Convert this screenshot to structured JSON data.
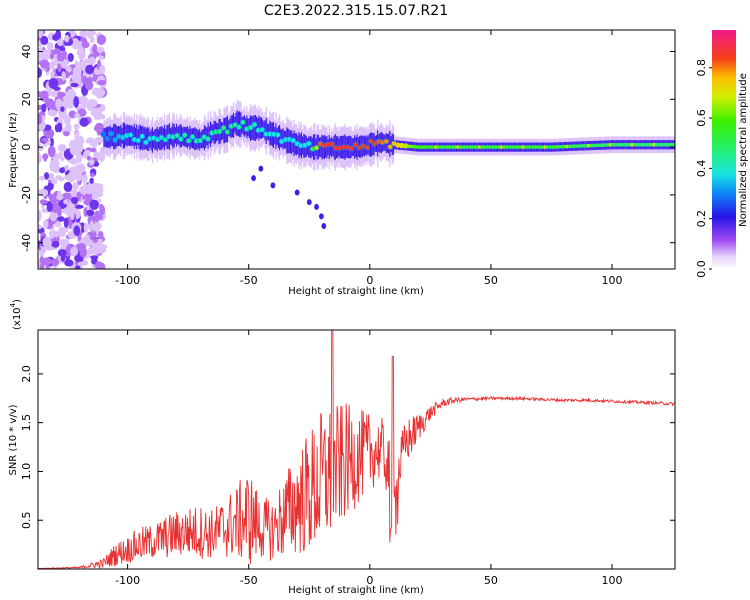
{
  "figure": {
    "title": "C2E3.2022.315.15.07.R21"
  },
  "chart_data": [
    {
      "type": "heatmap",
      "title": "",
      "xlabel": "Height of straight line (km)",
      "ylabel": "Frequency (Hz)",
      "xlim": [
        -137,
        126
      ],
      "ylim": [
        -51,
        49
      ],
      "x_ticks": [
        -100,
        -50,
        0,
        50,
        100
      ],
      "y_ticks": [
        -40,
        -20,
        0,
        20,
        40
      ],
      "colorbar": {
        "label": "Normalized spectral amplitude",
        "range": [
          0,
          0.95
        ],
        "ticks": [
          0.0,
          0.2,
          0.4,
          0.6,
          0.8
        ],
        "colormap": "rainbow (white → purple → blue → cyan → green → yellow → orange → red → magenta)"
      },
      "ridge": {
        "x": [
          -110,
          -100,
          -90,
          -80,
          -70,
          -65,
          -60,
          -55,
          -50,
          -45,
          -40,
          -35,
          -30,
          -25,
          -20,
          -15,
          -10,
          -5,
          0,
          5,
          10,
          20,
          30,
          50,
          75,
          100,
          126
        ],
        "y": [
          4,
          5,
          3,
          5,
          3,
          6,
          7,
          10,
          8,
          8,
          5,
          3,
          1,
          0,
          0,
          0,
          0,
          0,
          1,
          2,
          1,
          0,
          0,
          0,
          0,
          1,
          1
        ],
        "amplitude": [
          0.3,
          0.4,
          0.4,
          0.45,
          0.45,
          0.45,
          0.5,
          0.45,
          0.45,
          0.4,
          0.4,
          0.4,
          0.4,
          0.4,
          0.9,
          0.9,
          0.92,
          0.9,
          0.9,
          0.85,
          0.8,
          0.6,
          0.55,
          0.55,
          0.55,
          0.5,
          0.5
        ]
      },
      "noise_region": {
        "x_range": [
          -137,
          -110
        ],
        "y_range": [
          -51,
          49
        ],
        "amplitude": 0.2
      }
    },
    {
      "type": "line",
      "title": "",
      "xlabel": "Height of straight line (km)",
      "ylabel": "SNR (10 * v/v)",
      "y_multiplier_label": "(x10",
      "y_multiplier_exponent": "4",
      "y_multiplier_close": ")",
      "color": "#e83030",
      "xlim": [
        -137,
        126
      ],
      "ylim": [
        0,
        24500
      ],
      "x_ticks": [
        -100,
        -50,
        0,
        50,
        100
      ],
      "y_ticks": [
        5000,
        10000,
        15000,
        20000
      ],
      "y_tick_labels": [
        "0.5",
        "1.0",
        "1.5",
        "2.0"
      ],
      "series": [
        {
          "x": [
            -137,
            -120,
            -110,
            -105,
            -100,
            -95,
            -90,
            -85,
            -80,
            -75,
            -70,
            -65,
            -60,
            -55,
            -50,
            -45,
            -40,
            -35,
            -30,
            -25,
            -20,
            -15,
            -10,
            -5,
            0,
            5,
            10,
            15,
            20,
            25,
            30,
            35,
            40,
            50,
            60,
            70,
            80,
            90,
            100,
            110,
            120,
            126
          ],
          "y": [
            50,
            150,
            600,
            1500,
            2000,
            2500,
            2800,
            3200,
            3600,
            3800,
            3800,
            3600,
            4200,
            4800,
            5300,
            4200,
            4000,
            5500,
            6800,
            7800,
            9000,
            10000,
            11000,
            11500,
            12000,
            12300,
            8500,
            13000,
            14500,
            16000,
            17000,
            17300,
            17400,
            17500,
            17500,
            17400,
            17300,
            17300,
            17200,
            17100,
            17000,
            16900
          ],
          "amplitude": [
            20,
            80,
            500,
            1200,
            1400,
            1800,
            1800,
            2200,
            2400,
            2600,
            2800,
            2600,
            3200,
            3800,
            5200,
            3200,
            3200,
            4500,
            5500,
            6500,
            7500,
            7000,
            6000,
            5000,
            4000,
            3200,
            3200,
            2500,
            1500,
            800,
            400,
            300,
            200,
            150,
            150,
            150,
            150,
            150,
            150,
            150,
            150,
            150
          ]
        }
      ],
      "spikes": [
        {
          "x": -15.5,
          "y": 24500
        },
        {
          "x": 9.5,
          "y": 21800
        }
      ]
    }
  ]
}
